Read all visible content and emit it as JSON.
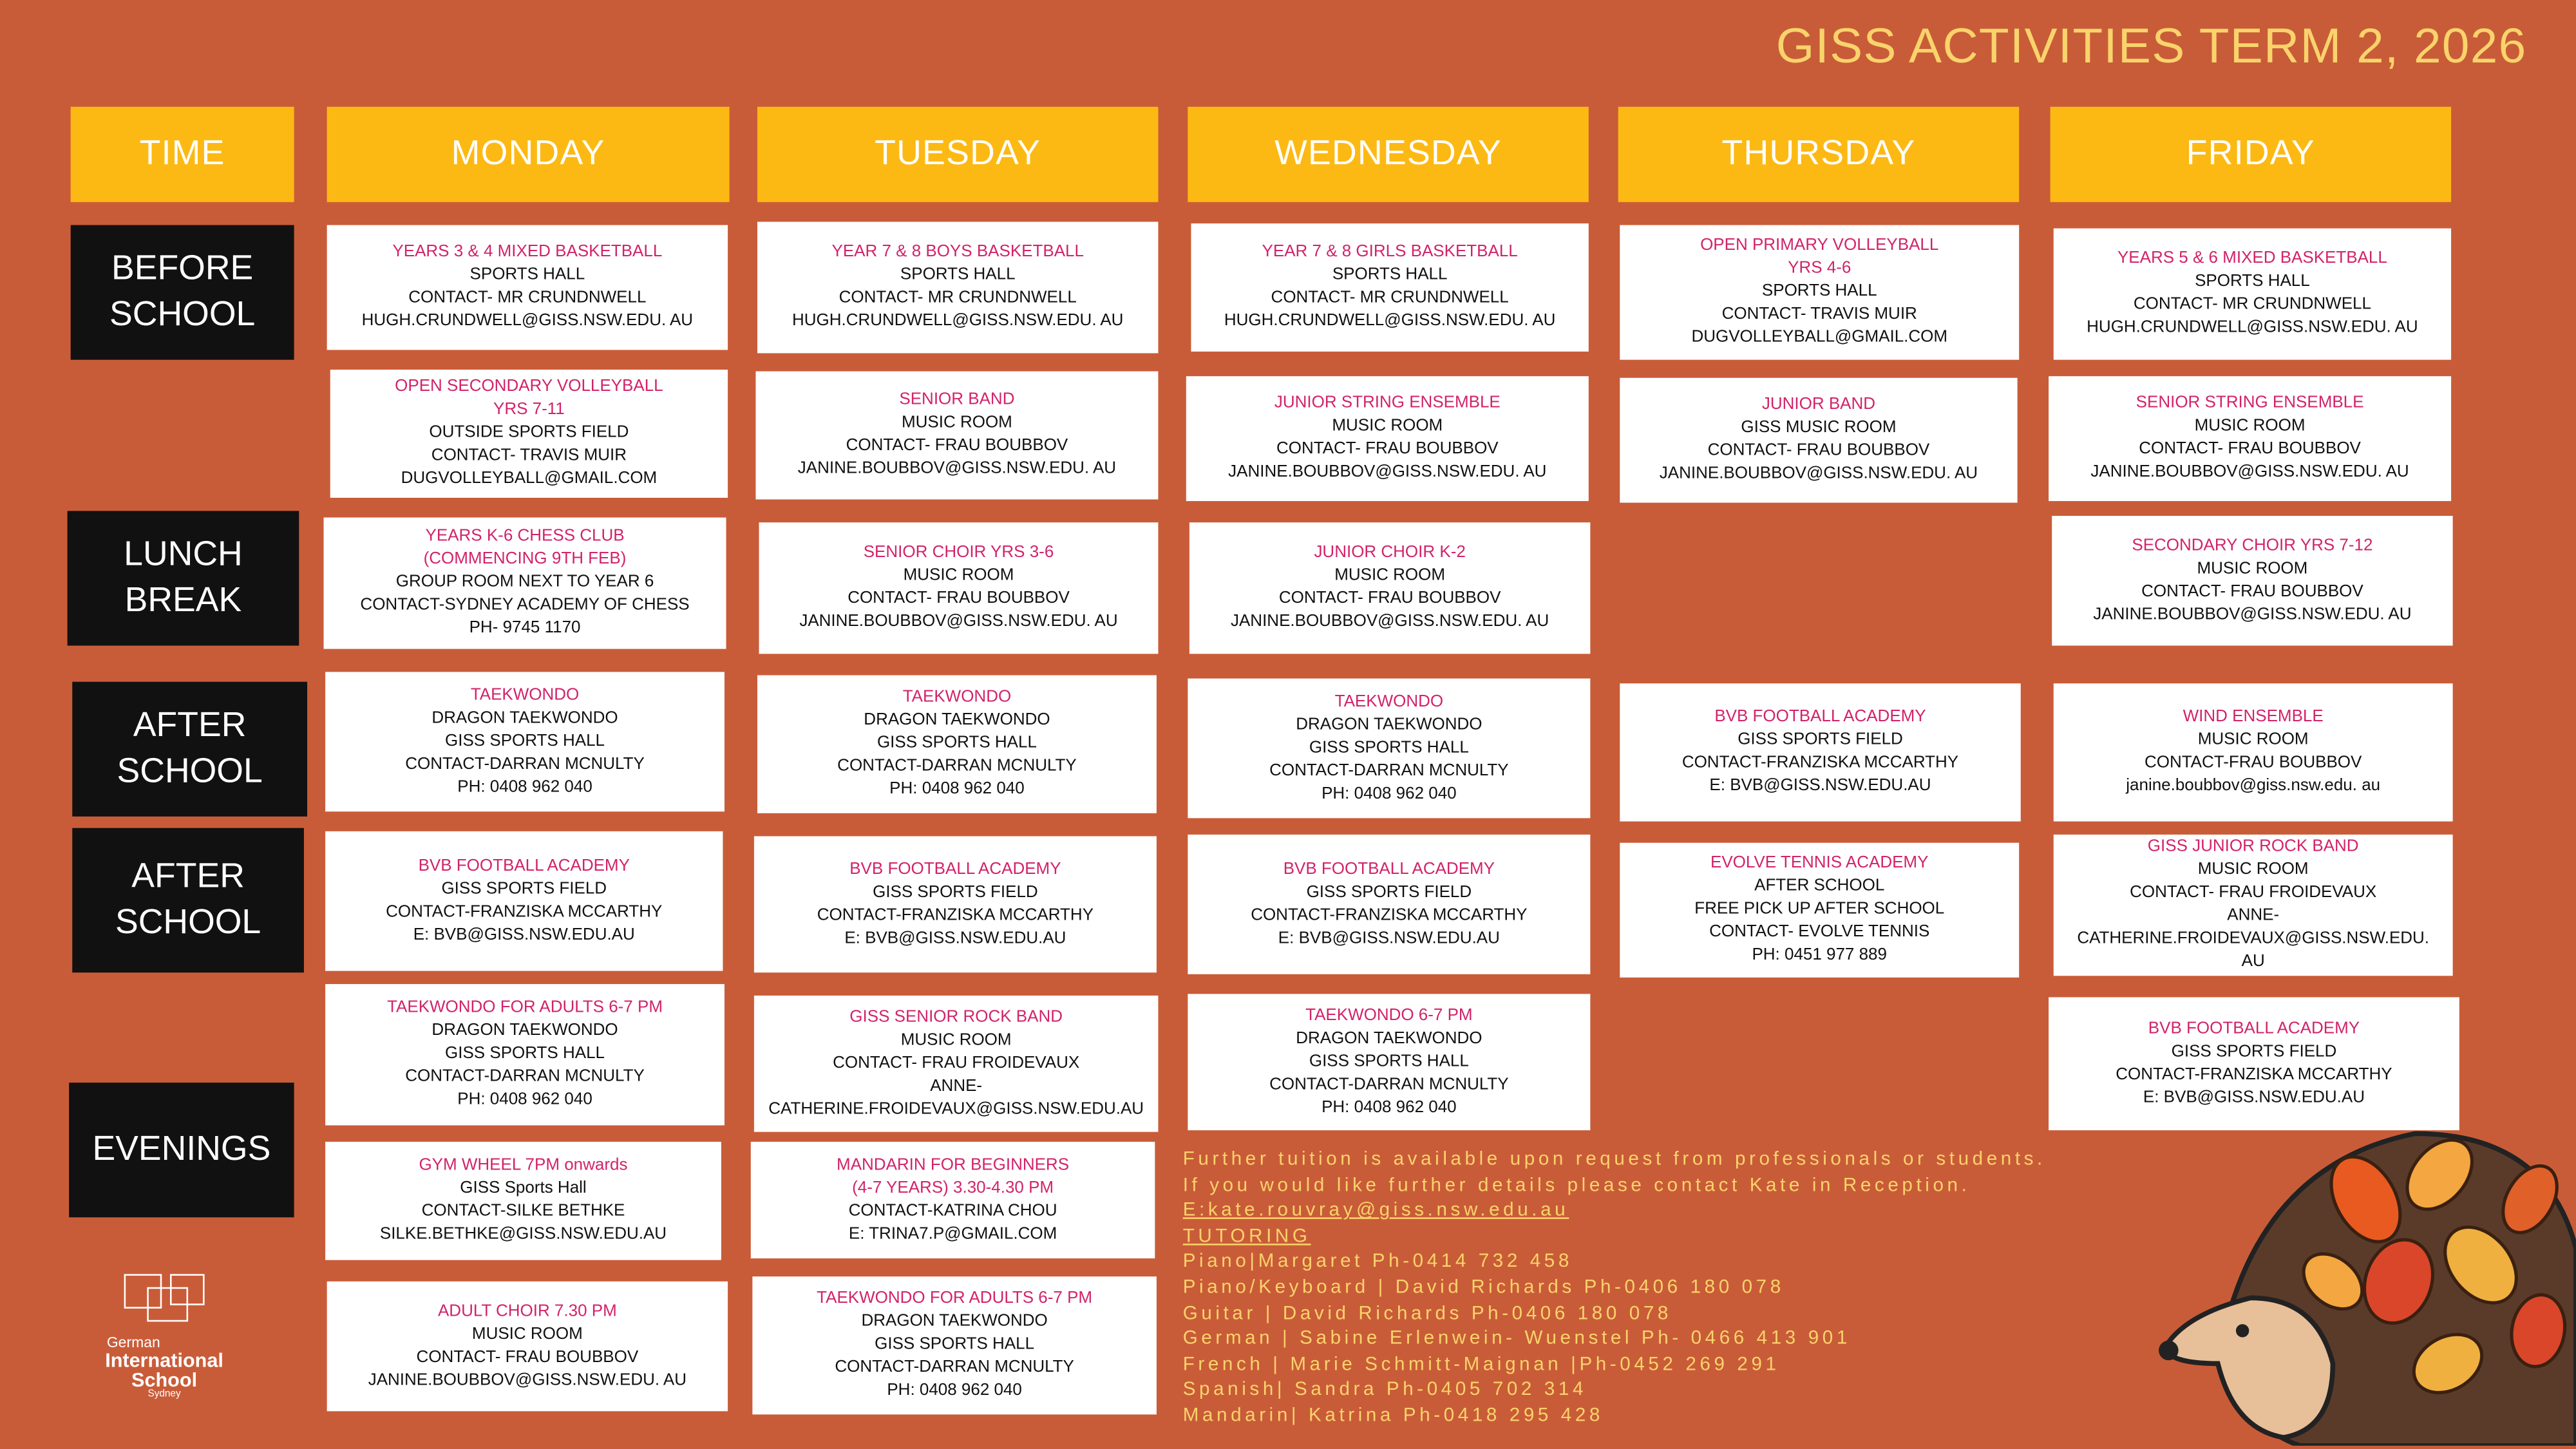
{
  "title": "GISS ACTIVITIES TERM 2, 2026",
  "headers": {
    "time": "TIME",
    "days": [
      "MONDAY",
      "TUESDAY",
      "WEDNESDAY",
      "THURSDAY",
      "FRIDAY"
    ]
  },
  "row_labels": {
    "before_school": "BEFORE SCHOOL",
    "lunch": "LUNCH BREAK",
    "after_school_1": "AFTER SCHOOL",
    "after_school_2": "AFTER SCHOOL",
    "evenings": "EVENINGS"
  },
  "colors": {
    "background": "#C95C38",
    "header": "#FDB913",
    "activity_title": "#D2236A",
    "footer_text": "#F9D36B"
  },
  "monday": [
    {
      "title": [
        "YEARS 3 & 4 MIXED BASKETBALL"
      ],
      "details": [
        "SPORTS HALL",
        "CONTACT- MR CRUNDNWELL",
        "HUGH.CRUNDWELL@GISS.NSW.EDU. AU"
      ]
    },
    {
      "title": [
        "OPEN SECONDARY VOLLEYBALL",
        "YRS 7-11"
      ],
      "details": [
        "OUTSIDE SPORTS FIELD",
        "CONTACT- TRAVIS MUIR",
        "DUGVOLLEYBALL@GMAIL.COM"
      ]
    },
    {
      "title": [
        "YEARS K-6 CHESS CLUB",
        "(COMMENCING 9TH FEB)"
      ],
      "details": [
        "GROUP ROOM NEXT TO YEAR 6",
        "CONTACT-SYDNEY ACADEMY OF CHESS",
        "PH- 9745 1170"
      ]
    },
    {
      "title": [
        "TAEKWONDO"
      ],
      "details": [
        "DRAGON TAEKWONDO",
        "GISS SPORTS HALL",
        "CONTACT-DARRAN MCNULTY",
        "PH: 0408 962 040"
      ]
    },
    {
      "title": [
        "BVB FOOTBALL ACADEMY"
      ],
      "details": [
        "GISS SPORTS FIELD",
        "CONTACT-FRANZISKA MCCARTHY",
        "E: BVB@GISS.NSW.EDU.AU"
      ]
    },
    {
      "title": [
        "TAEKWONDO FOR ADULTS  6-7 PM"
      ],
      "details": [
        "DRAGON TAEKWONDO",
        "GISS SPORTS HALL",
        "CONTACT-DARRAN MCNULTY",
        "PH: 0408 962 040"
      ]
    },
    {
      "title": [
        "GYM WHEEL 7PM onwards"
      ],
      "details": [
        "GISS Sports Hall",
        "CONTACT-SILKE BETHKE",
        "SILKE.BETHKE@GISS.NSW.EDU.AU"
      ]
    },
    {
      "title": [
        "ADULT CHOIR 7.30 PM"
      ],
      "details": [
        "MUSIC ROOM",
        "CONTACT- FRAU BOUBBOV",
        "JANINE.BOUBBOV@GISS.NSW.EDU. AU"
      ]
    }
  ],
  "tuesday": [
    {
      "title": [
        "YEAR 7 & 8 BOYS  BASKETBALL"
      ],
      "details": [
        "SPORTS HALL",
        "CONTACT- MR CRUNDNWELL",
        "HUGH.CRUNDWELL@GISS.NSW.EDU. AU"
      ]
    },
    {
      "title": [
        "SENIOR  BAND"
      ],
      "details": [
        "MUSIC ROOM",
        "CONTACT- FRAU BOUBBOV",
        "JANINE.BOUBBOV@GISS.NSW.EDU. AU"
      ]
    },
    {
      "title": [
        "SENIOR  CHOIR YRS 3-6"
      ],
      "details": [
        "MUSIC ROOM",
        "CONTACT- FRAU BOUBBOV",
        "JANINE.BOUBBOV@GISS.NSW.EDU. AU"
      ]
    },
    {
      "title": [
        "TAEKWONDO"
      ],
      "details": [
        "DRAGON TAEKWONDO",
        "GISS SPORTS HALL",
        "CONTACT-DARRAN MCNULTY",
        "PH: 0408 962 040"
      ]
    },
    {
      "title": [
        "BVB FOOTBALL ACADEMY"
      ],
      "details": [
        "GISS SPORTS FIELD",
        "CONTACT-FRANZISKA MCCARTHY",
        "E: BVB@GISS.NSW.EDU.AU"
      ]
    },
    {
      "title": [
        "GISS SENIOR ROCK BAND"
      ],
      "details": [
        "MUSIC ROOM",
        "CONTACT- FRAU FROIDEVAUX",
        "ANNE-",
        "CATHERINE.FROIDEVAUX@GISS.NSW.EDU.AU"
      ]
    },
    {
      "title": [
        "MANDARIN FOR BEGINNERS",
        "(4-7 YEARS) 3.30-4.30 PM"
      ],
      "details": [
        "CONTACT-KATRINA CHOU",
        "E: TRINA7.P@GMAIL.COM"
      ]
    },
    {
      "title": [
        "TAEKWONDO FOR ADULTS  6-7 PM"
      ],
      "details": [
        "DRAGON TAEKWONDO",
        "GISS SPORTS HALL",
        "CONTACT-DARRAN MCNULTY",
        "PH: 0408 962 040"
      ]
    }
  ],
  "wednesday": [
    {
      "title": [
        "YEAR 7 & 8 GIRLS BASKETBALL"
      ],
      "details": [
        "SPORTS HALL",
        "CONTACT- MR CRUNDNWELL",
        "HUGH.CRUNDWELL@GISS.NSW.EDU. AU"
      ]
    },
    {
      "title": [
        "JUNIOR STRING ENSEMBLE"
      ],
      "details": [
        "MUSIC ROOM",
        "CONTACT- FRAU BOUBBOV",
        "JANINE.BOUBBOV@GISS.NSW.EDU. AU"
      ]
    },
    {
      "title": [
        "JUNIOR CHOIR K-2"
      ],
      "details": [
        "MUSIC ROOM",
        "CONTACT- FRAU BOUBBOV",
        "JANINE.BOUBBOV@GISS.NSW.EDU. AU"
      ]
    },
    {
      "title": [
        "TAEKWONDO"
      ],
      "details": [
        "DRAGON TAEKWONDO",
        "GISS SPORTS HALL",
        "CONTACT-DARRAN MCNULTY",
        "PH: 0408 962 040"
      ]
    },
    {
      "title": [
        "BVB FOOTBALL ACADEMY"
      ],
      "details": [
        "GISS SPORTS FIELD",
        "CONTACT-FRANZISKA MCCARTHY",
        "E: BVB@GISS.NSW.EDU.AU"
      ]
    },
    {
      "title": [
        "TAEKWONDO 6-7 PM"
      ],
      "details": [
        "DRAGON TAEKWONDO",
        "GISS SPORTS HALL",
        "CONTACT-DARRAN MCNULTY",
        "PH: 0408 962 040"
      ]
    }
  ],
  "thursday": [
    {
      "title": [
        "OPEN PRIMARY VOLLEYBALL",
        "YRS 4-6"
      ],
      "details": [
        "SPORTS HALL",
        "CONTACT- TRAVIS MUIR",
        "DUGVOLLEYBALL@GMAIL.COM"
      ]
    },
    {
      "title": [
        "JUNIOR BAND"
      ],
      "details": [
        "GISS MUSIC ROOM",
        "CONTACT- FRAU BOUBBOV",
        "JANINE.BOUBBOV@GISS.NSW.EDU. AU"
      ]
    },
    {
      "title": [
        "BVB FOOTBALL ACADEMY"
      ],
      "details": [
        "GISS SPORTS FIELD",
        "CONTACT-FRANZISKA MCCARTHY",
        "E: BVB@GISS.NSW.EDU.AU"
      ]
    },
    {
      "title": [
        "EVOLVE TENNIS ACADEMY"
      ],
      "details": [
        "AFTER SCHOOL",
        "FREE PICK UP AFTER SCHOOL",
        "CONTACT- EVOLVE TENNIS",
        "PH: 0451 977 889"
      ]
    }
  ],
  "friday": [
    {
      "title": [
        "YEARS 5 & 6  MIXED BASKETBALL"
      ],
      "details": [
        "SPORTS HALL",
        "CONTACT- MR CRUNDNWELL",
        "HUGH.CRUNDWELL@GISS.NSW.EDU. AU"
      ]
    },
    {
      "title": [
        "SENIOR STRING ENSEMBLE"
      ],
      "details": [
        "MUSIC ROOM",
        "CONTACT- FRAU BOUBBOV",
        "JANINE.BOUBBOV@GISS.NSW.EDU. AU"
      ]
    },
    {
      "title": [
        "SECONDARY  CHOIR YRS 7-12"
      ],
      "details": [
        "MUSIC ROOM",
        "CONTACT- FRAU BOUBBOV",
        "JANINE.BOUBBOV@GISS.NSW.EDU. AU"
      ]
    },
    {
      "title": [
        "WIND ENSEMBLE"
      ],
      "details": [
        "MUSIC ROOM",
        "CONTACT-FRAU BOUBBOV",
        "janine.boubbov@giss.nsw.edu. au"
      ]
    },
    {
      "title": [
        "GISS JUNIOR ROCK BAND"
      ],
      "details": [
        "MUSIC ROOM",
        "CONTACT- FRAU FROIDEVAUX",
        "ANNE-",
        "CATHERINE.FROIDEVAUX@GISS.NSW.EDU.",
        "AU"
      ]
    },
    {
      "title": [
        "BVB FOOTBALL ACADEMY"
      ],
      "details": [
        "GISS SPORTS FIELD",
        "CONTACT-FRANZISKA MCCARTHY",
        "E: BVB@GISS.NSW.EDU.AU"
      ]
    }
  ],
  "footer": {
    "intro": [
      "Further tuition is available upon request from professionals or students.",
      "If you would like further details please contact Kate in Reception."
    ],
    "email": "E:kate.rouvray@giss.nsw.edu.au",
    "tutoring_heading": "TUTORING",
    "tutors": [
      "Piano|Margaret Ph-0414 732 458",
      "Piano/Keyboard |  David Richards Ph-0406 180 078",
      "Guitar | David Richards Ph-0406 180 078",
      "German | Sabine Erlenwein- Wuenstel Ph- 0466 413 901",
      "French | Marie Schmitt-Maignan |Ph-0452 269 291",
      "Spanish| Sandra Ph-0405 702 314",
      "Mandarin| Katrina Ph-0418 295 428"
    ]
  },
  "logo": {
    "line1": "German",
    "line2": "International",
    "line3": "School",
    "line4": "Sydney"
  }
}
